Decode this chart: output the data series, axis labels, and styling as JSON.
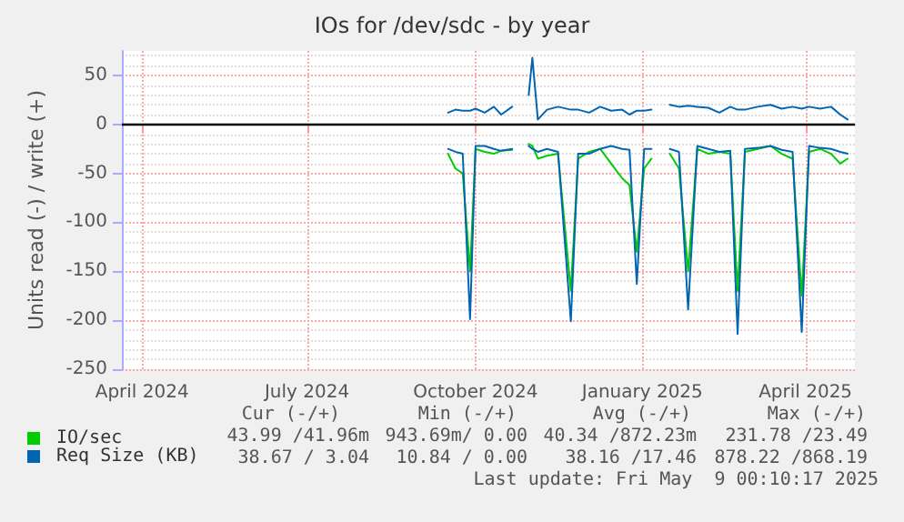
{
  "chart_data": {
    "type": "line",
    "title": "IOs for /dev/sdc - by year",
    "ylabel": "Units read (-) / write (+)",
    "x": [
      "2024-09-29",
      "2024-10-03",
      "2024-10-07",
      "2024-10-11",
      "2024-10-14",
      "2024-10-19",
      "2024-10-24",
      "2024-10-28",
      "2024-11-03",
      "2024-11-08",
      "2024-11-12",
      "2024-11-14",
      "2024-11-17",
      "2024-11-22",
      "2024-11-28",
      "2024-12-05",
      "2024-12-09",
      "2024-12-15",
      "2024-12-21",
      "2024-12-27",
      "2025-01-02",
      "2025-01-06",
      "2025-01-10",
      "2025-01-14",
      "2025-01-18",
      "2025-01-23",
      "2025-01-28",
      "2025-02-02",
      "2025-02-07",
      "2025-02-12",
      "2025-02-18",
      "2025-02-24",
      "2025-03-02",
      "2025-03-06",
      "2025-03-10",
      "2025-03-17",
      "2025-03-24",
      "2025-03-30",
      "2025-04-05",
      "2025-04-10",
      "2025-04-14",
      "2025-04-20",
      "2025-04-26",
      "2025-05-01",
      "2025-05-05"
    ],
    "series": [
      {
        "name": "IO/sec",
        "color": "#00cc00",
        "values": [
          -30,
          -45,
          -50,
          -150,
          -25,
          -28,
          -30,
          -27,
          -26,
          null,
          -20,
          -22,
          -35,
          -32,
          -30,
          -170,
          -35,
          -28,
          -25,
          -40,
          -55,
          -62,
          -130,
          -45,
          -35,
          null,
          -30,
          -45,
          -150,
          -25,
          -30,
          -28,
          -30,
          -170,
          -28,
          -25,
          -22,
          -30,
          -35,
          -175,
          -28,
          -25,
          -30,
          -40,
          -35
        ]
      },
      {
        "name": "Req Size (KB)",
        "color": "#0066b3",
        "values": [
          -25,
          -28,
          -30,
          -199,
          -22,
          -22,
          -25,
          -27,
          -25,
          null,
          -22,
          -25,
          -28,
          -25,
          -28,
          -201,
          -30,
          -30,
          -25,
          -22,
          -25,
          -26,
          -163,
          -25,
          -25,
          null,
          -25,
          -28,
          -189,
          -22,
          -25,
          -28,
          -27,
          -214,
          -25,
          -24,
          -22,
          -26,
          -28,
          -212,
          -22,
          -24,
          -25,
          -28,
          -30
        ]
      },
      {
        "color": "#0066b3",
        "values": [
          12,
          15,
          14,
          14,
          16,
          12,
          18,
          10,
          18,
          null,
          30,
          68,
          5,
          15,
          18,
          15,
          15,
          12,
          18,
          14,
          15,
          10,
          14,
          14,
          15,
          null,
          20,
          18,
          19,
          18,
          17,
          12,
          18,
          15,
          15,
          18,
          20,
          16,
          18,
          16,
          18,
          16,
          18,
          10,
          5
        ]
      }
    ],
    "xlim": [
      "2024-04-04",
      "2025-05-09"
    ],
    "xticks": [
      {
        "value": "2024-04-15",
        "label": "April 2024"
      },
      {
        "value": "2024-07-14",
        "label": "July 2024"
      },
      {
        "value": "2024-10-14",
        "label": "October 2024"
      },
      {
        "value": "2025-01-13",
        "label": "January 2025"
      },
      {
        "value": "2025-04-12",
        "label": "April 2025"
      }
    ],
    "ylim": [
      -250,
      75
    ],
    "yticks": [
      -250,
      -200,
      -150,
      -100,
      -50,
      0,
      50
    ],
    "ref_lines": [
      {
        "axis": "y",
        "value": 0,
        "color": "#000000"
      }
    ],
    "grid": true,
    "legend": "bottom",
    "marker": "none",
    "line_style": "solid",
    "annotations": [
      "Cur (-/+)",
      "Min (-/+)",
      "Avg (-/+)",
      "Max (-/+)",
      "43.99 /41.96m",
      "943.69m/ 0.00",
      "40.34 /872.23m",
      "231.78 /23.49",
      "38.67 / 3.04",
      "10.84 / 0.00",
      "38.16 /17.46",
      "878.22 /868.19",
      "Last update: Fri May  9 00:10:17 2025"
    ]
  }
}
